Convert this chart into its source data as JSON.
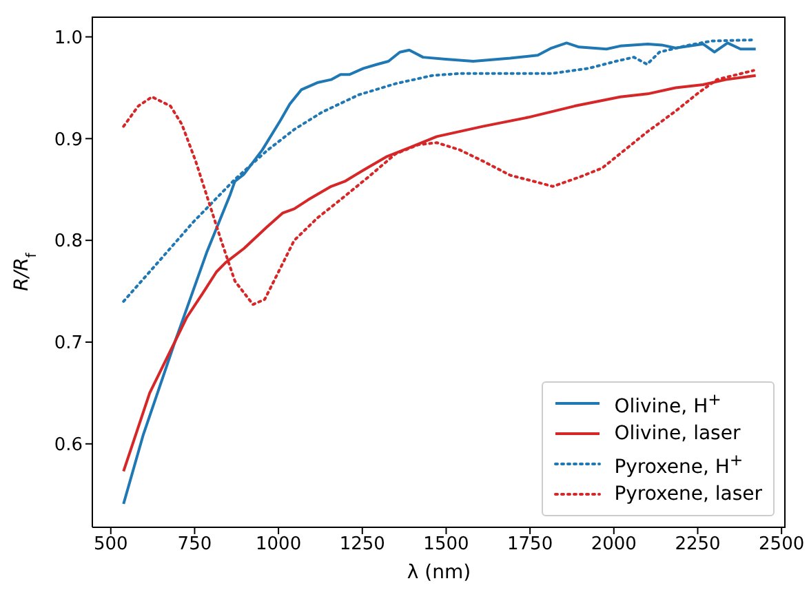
{
  "chart_data": {
    "type": "line",
    "xlabel": "λ (nm)",
    "ylabel": "R/R$_{f}$",
    "xlim": [
      445,
      2512
    ],
    "ylim": [
      0.518,
      1.02
    ],
    "xticks": [
      500,
      750,
      1000,
      1250,
      1500,
      1750,
      2000,
      2250,
      2500
    ],
    "yticks": [
      0.6,
      0.7,
      0.8,
      0.9,
      {
        "value": 1,
        "label": "1.0"
      }
    ],
    "grid": false,
    "legend": "bottom right",
    "marker": "none",
    "series": [
      {
        "name": "Olivine, H$^{+}$",
        "color": "#1f77b4",
        "line_style": "solid",
        "x": [
          538,
          596,
          692,
          787,
          856,
          870,
          897,
          952,
          1006,
          1034,
          1068,
          1116,
          1157,
          1185,
          1212,
          1253,
          1294,
          1328,
          1362,
          1390,
          1431,
          1499,
          1581,
          1691,
          1773,
          1814,
          1859,
          1896,
          1978,
          2019,
          2101,
          2143,
          2184,
          2266,
          2300,
          2339,
          2378,
          2423
        ],
        "values": [
          0.541,
          0.608,
          0.701,
          0.789,
          0.845,
          0.858,
          0.865,
          0.889,
          0.918,
          0.934,
          0.948,
          0.955,
          0.958,
          0.963,
          0.963,
          0.969,
          0.973,
          0.976,
          0.985,
          0.987,
          0.98,
          0.978,
          0.976,
          0.979,
          0.982,
          0.989,
          0.994,
          0.99,
          0.988,
          0.991,
          0.993,
          0.992,
          0.989,
          0.993,
          0.985,
          0.994,
          0.988,
          0.988
        ]
      },
      {
        "name": "Olivine, laser",
        "color": "#d62728",
        "line_style": "solid",
        "x": [
          538,
          616,
          692,
          726,
          774,
          815,
          842,
          897,
          965,
          1013,
          1047,
          1089,
          1157,
          1198,
          1253,
          1321,
          1390,
          1472,
          1609,
          1746,
          1883,
          2019,
          2101,
          2184,
          2266,
          2334,
          2423
        ],
        "values": [
          0.573,
          0.65,
          0.701,
          0.724,
          0.748,
          0.769,
          0.778,
          0.792,
          0.813,
          0.827,
          0.831,
          0.84,
          0.853,
          0.858,
          0.869,
          0.882,
          0.891,
          0.902,
          0.912,
          0.921,
          0.932,
          0.941,
          0.944,
          0.95,
          0.953,
          0.958,
          0.962
        ]
      },
      {
        "name": "Pyroxene, H$^{+}$",
        "color": "#1f77b4",
        "line_style": "dotted",
        "x": [
          538,
          637,
          746,
          870,
          965,
          1047,
          1130,
          1239,
          1349,
          1458,
          1540,
          1814,
          1924,
          2006,
          2060,
          2099,
          2136,
          2225,
          2293,
          2417
        ],
        "values": [
          0.74,
          0.777,
          0.818,
          0.86,
          0.888,
          0.909,
          0.926,
          0.943,
          0.954,
          0.962,
          0.964,
          0.964,
          0.969,
          0.976,
          0.98,
          0.973,
          0.985,
          0.992,
          0.996,
          0.997
        ]
      },
      {
        "name": "Pyroxene, laser",
        "color": "#d62728",
        "line_style": "dotted",
        "x": [
          538,
          582,
          623,
          678,
          712,
          753,
          794,
          829,
          870,
          924,
          959,
          1000,
          1047,
          1116,
          1185,
          1267,
          1349,
          1417,
          1472,
          1540,
          1609,
          1691,
          1773,
          1818,
          1896,
          1965,
          2033,
          2101,
          2184,
          2252,
          2307,
          2417
        ],
        "values": [
          0.912,
          0.932,
          0.941,
          0.932,
          0.914,
          0.878,
          0.836,
          0.8,
          0.76,
          0.737,
          0.742,
          0.769,
          0.8,
          0.822,
          0.84,
          0.862,
          0.885,
          0.894,
          0.896,
          0.889,
          0.878,
          0.864,
          0.857,
          0.853,
          0.862,
          0.871,
          0.889,
          0.907,
          0.927,
          0.945,
          0.958,
          0.967
        ]
      }
    ]
  }
}
